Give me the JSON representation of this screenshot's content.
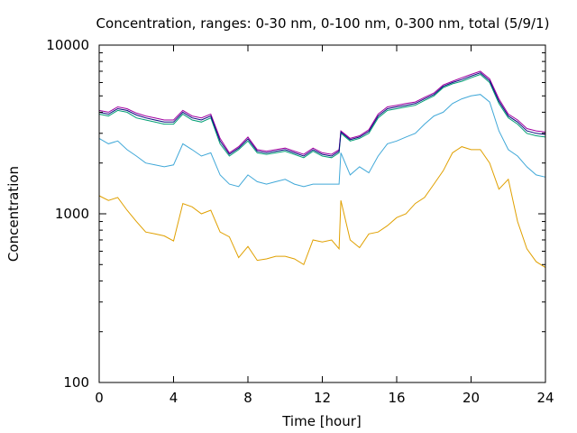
{
  "chart_data": {
    "type": "line",
    "title": "Concentration, ranges: 0-30 nm, 0-100 nm, 0-300 nm, total (5/9/1)",
    "xlabel": "Time [hour]",
    "ylabel": "Concentration",
    "xlim": [
      0,
      24
    ],
    "ylim": [
      100,
      10000
    ],
    "yscale": "log",
    "grid": false,
    "legend": "none",
    "x_ticks": [
      0,
      4,
      8,
      12,
      16,
      20,
      24
    ],
    "x_tick_labels": [
      "0",
      "4",
      "8",
      "12",
      "16",
      "20",
      "24"
    ],
    "y_ticks": [
      100,
      1000,
      10000
    ],
    "y_tick_labels": [
      "100",
      "1000",
      "10000"
    ],
    "x": [
      0,
      0.5,
      1,
      1.5,
      2,
      2.5,
      3,
      3.5,
      4,
      4.5,
      5,
      5.5,
      6,
      6.5,
      7,
      7.5,
      8,
      8.5,
      9,
      9.5,
      10,
      10.5,
      11,
      11.5,
      12,
      12.5,
      12.9,
      13,
      13.5,
      14,
      14.5,
      15,
      15.5,
      16,
      16.5,
      17,
      17.5,
      18,
      18.5,
      19,
      19.5,
      20,
      20.5,
      21,
      21.5,
      22,
      22.5,
      23,
      23.5,
      24
    ],
    "series": [
      {
        "color": "#e0a000",
        "values": [
          1280,
          1200,
          1250,
          1050,
          900,
          780,
          760,
          740,
          690,
          1150,
          1100,
          1000,
          1050,
          780,
          730,
          550,
          640,
          530,
          540,
          560,
          560,
          540,
          500,
          700,
          680,
          700,
          620,
          1200,
          700,
          630,
          760,
          780,
          850,
          950,
          1000,
          1150,
          1250,
          1500,
          1800,
          2300,
          2500,
          2400,
          2400,
          2000,
          1400,
          1600,
          900,
          620,
          520,
          480
        ]
      },
      {
        "color": "#40a8d8",
        "values": [
          2800,
          2600,
          2700,
          2400,
          2200,
          2000,
          1950,
          1900,
          1950,
          2600,
          2400,
          2200,
          2300,
          1700,
          1500,
          1450,
          1700,
          1550,
          1500,
          1550,
          1600,
          1500,
          1450,
          1500,
          1500,
          1500,
          1500,
          2300,
          1700,
          1900,
          1750,
          2200,
          2600,
          2700,
          2850,
          3000,
          3400,
          3800,
          4000,
          4500,
          4800,
          5000,
          5100,
          4600,
          3100,
          2400,
          2200,
          1900,
          1700,
          1650
        ]
      },
      {
        "color": "#009e73",
        "values": [
          3900,
          3800,
          4100,
          4000,
          3700,
          3600,
          3500,
          3400,
          3400,
          3900,
          3600,
          3500,
          3700,
          2600,
          2200,
          2400,
          2700,
          2300,
          2250,
          2300,
          2350,
          2250,
          2150,
          2350,
          2200,
          2150,
          2300,
          3000,
          2700,
          2800,
          3000,
          3700,
          4100,
          4200,
          4300,
          4400,
          4700,
          5000,
          5600,
          5900,
          6100,
          6400,
          6700,
          6000,
          4500,
          3700,
          3400,
          3000,
          2900,
          2850
        ]
      },
      {
        "color": "#a000a0",
        "values": [
          4100,
          4000,
          4300,
          4200,
          3950,
          3800,
          3700,
          3600,
          3600,
          4100,
          3800,
          3700,
          3900,
          2800,
          2300,
          2500,
          2850,
          2400,
          2350,
          2400,
          2450,
          2350,
          2250,
          2450,
          2300,
          2250,
          2400,
          3100,
          2800,
          2900,
          3150,
          3900,
          4300,
          4400,
          4500,
          4600,
          4900,
          5200,
          5800,
          6100,
          6400,
          6700,
          7000,
          6300,
          4800,
          3900,
          3600,
          3200,
          3100,
          3050
        ]
      },
      {
        "color": "#0a0a80",
        "values": [
          4000,
          3900,
          4200,
          4100,
          3850,
          3700,
          3600,
          3500,
          3500,
          4000,
          3700,
          3600,
          3800,
          2700,
          2250,
          2450,
          2780,
          2350,
          2300,
          2350,
          2400,
          2300,
          2200,
          2400,
          2250,
          2200,
          2350,
          3050,
          2750,
          2850,
          3080,
          3800,
          4200,
          4300,
          4400,
          4500,
          4800,
          5100,
          5700,
          6000,
          6250,
          6550,
          6850,
          6150,
          4650,
          3800,
          3500,
          3100,
          3000,
          2950
        ]
      }
    ]
  }
}
